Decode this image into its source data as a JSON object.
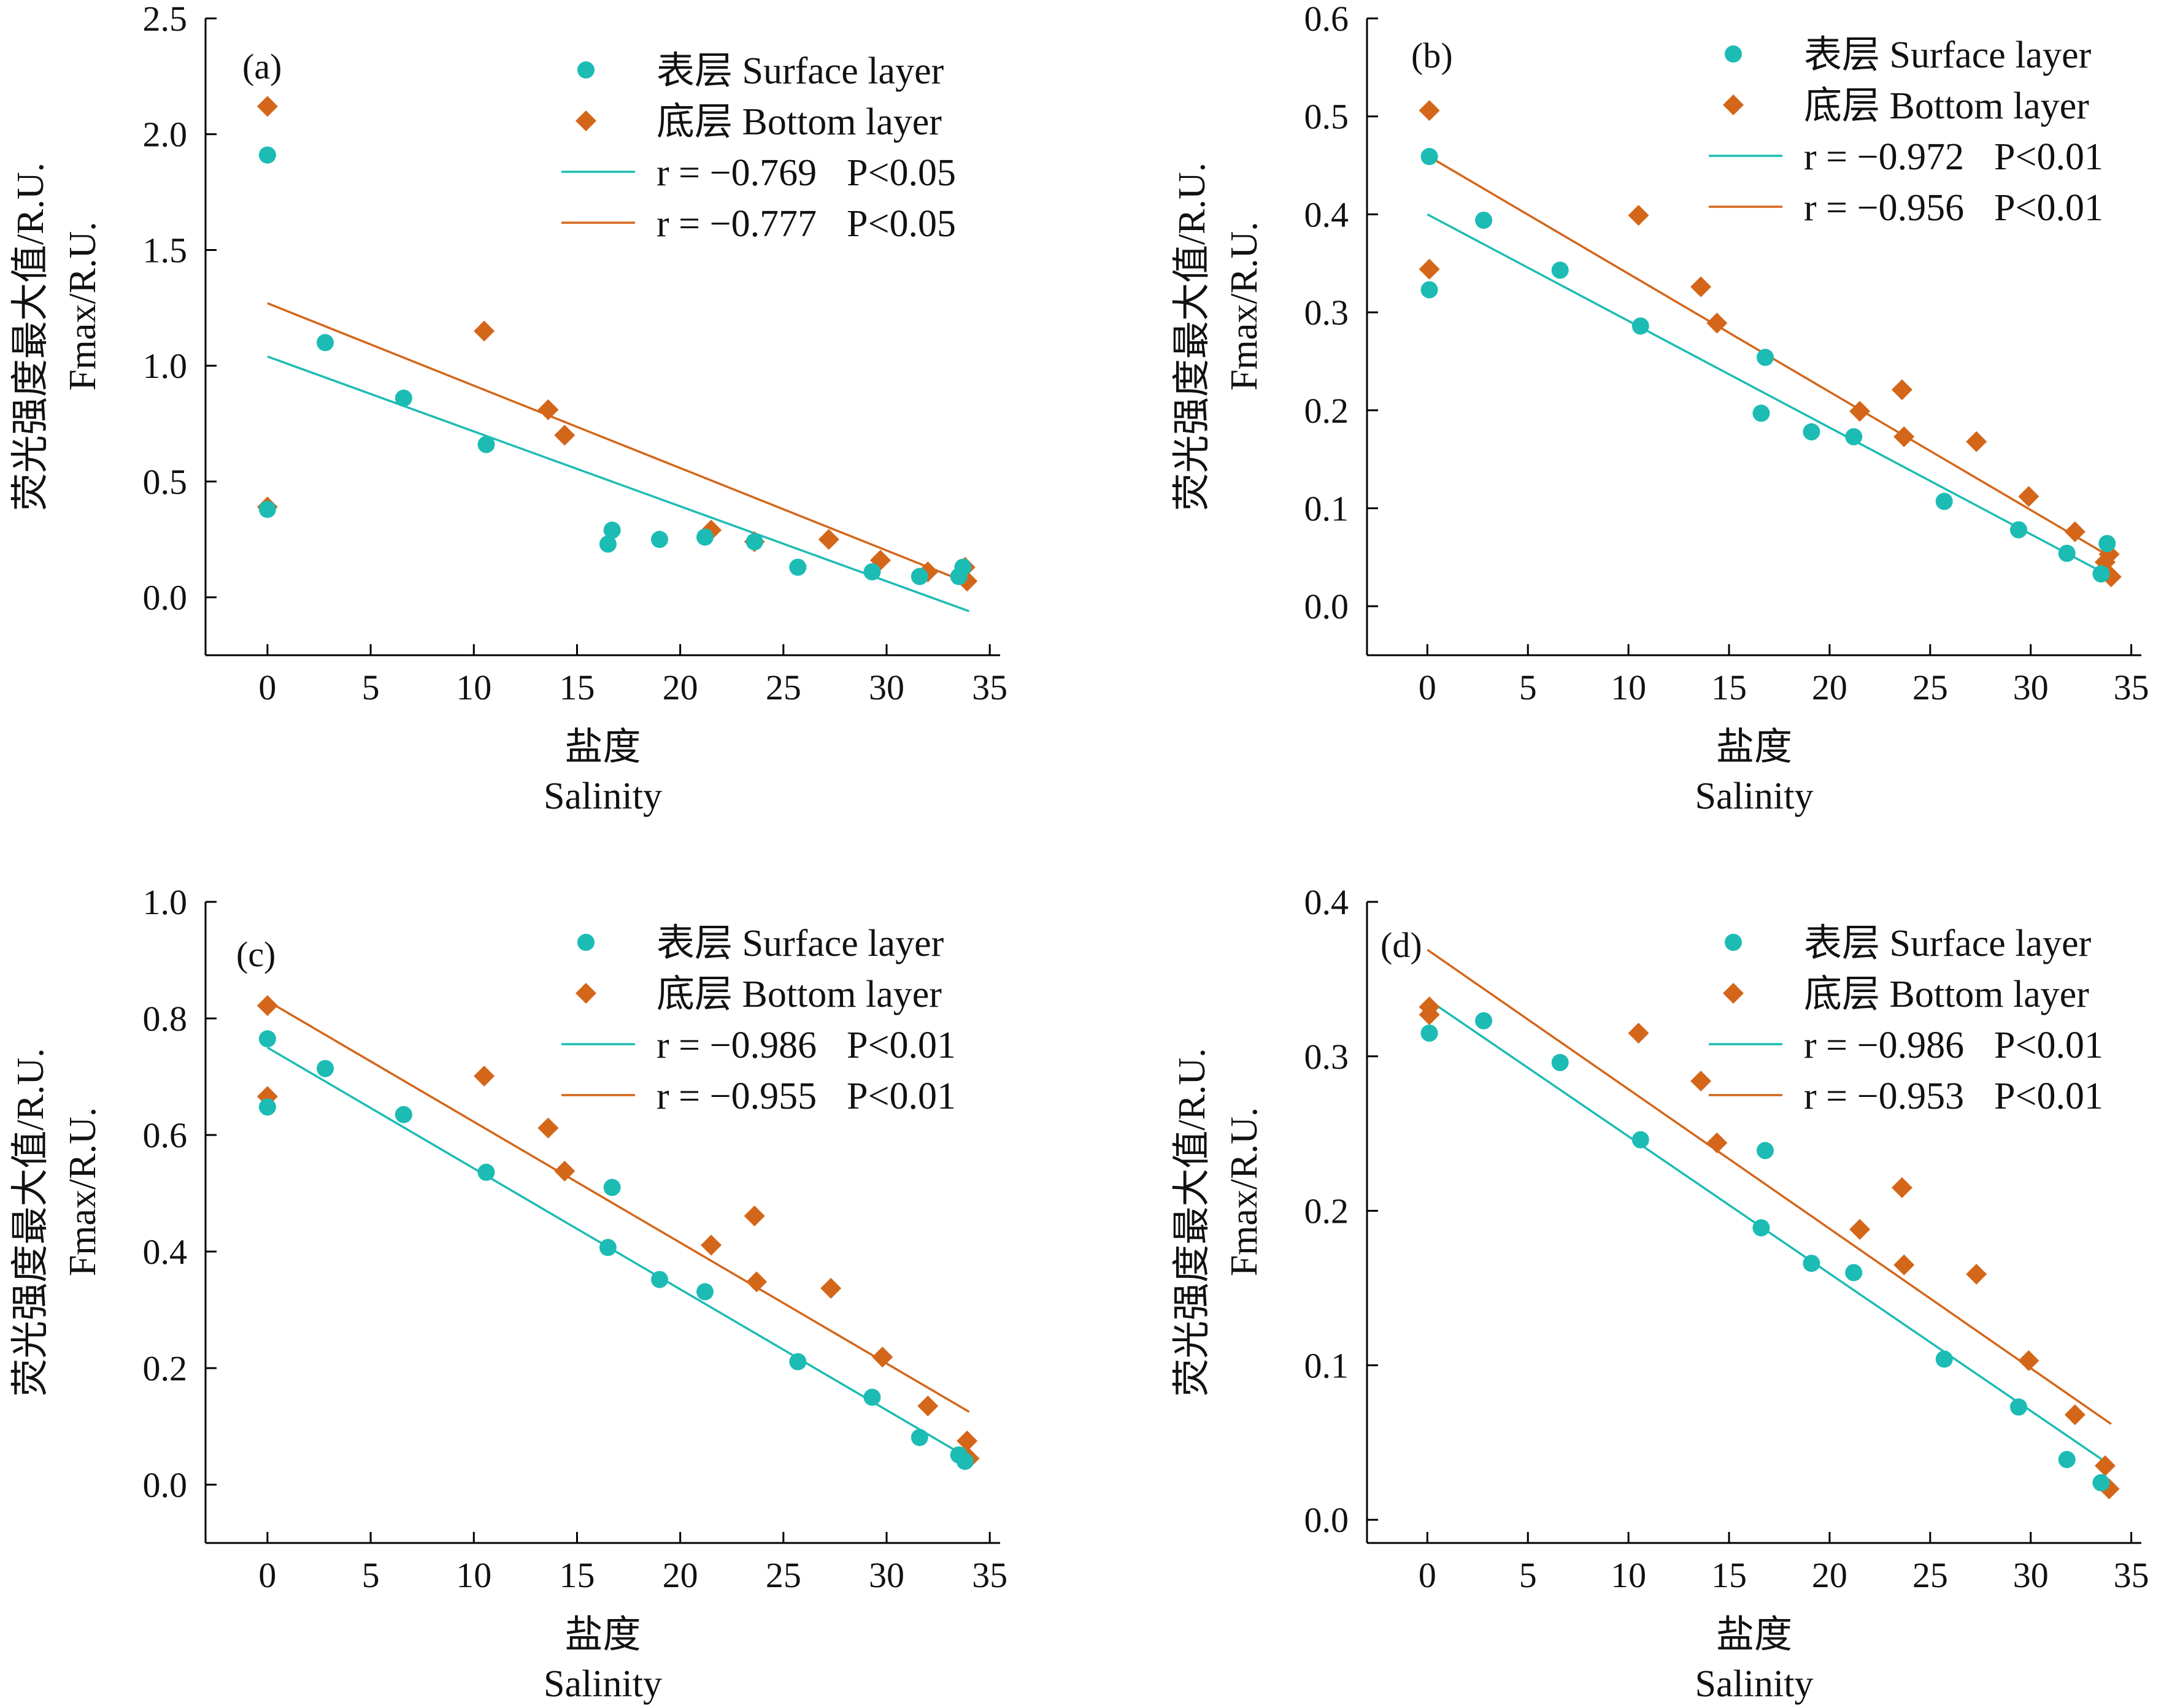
{
  "colors": {
    "surface": "#1cbcb4",
    "bottom": "#d4661a",
    "axis": "#000000"
  },
  "chart_data": [
    {
      "type": "scatter",
      "panel": "(a)",
      "xlabel_cn": "盐度",
      "xlabel_en": "Salinity",
      "ylabel_cn": "荧光强度最大值/R.U.",
      "ylabel_en": "Fmax/R.U.",
      "xlim": [
        -3,
        35.5
      ],
      "ylim": [
        -0.25,
        2.5
      ],
      "xticks": [
        0,
        5,
        10,
        15,
        20,
        25,
        30,
        35
      ],
      "yticks": [
        0.0,
        0.5,
        1.0,
        1.5,
        2.0,
        2.5
      ],
      "ytick_labels": [
        "0.0",
        "0.5",
        "1.0",
        "1.5",
        "2.0",
        "2.5"
      ],
      "series": [
        {
          "name": "表层 Surface layer",
          "marker": "circle",
          "color": "#1cbcb4",
          "x": [
            0,
            0,
            2.8,
            6.6,
            10.6,
            16.5,
            16.7,
            19.0,
            21.2,
            23.6,
            25.7,
            29.3,
            31.6,
            33.5,
            33.7
          ],
          "y": [
            1.91,
            0.38,
            1.1,
            0.86,
            0.66,
            0.23,
            0.29,
            0.25,
            0.26,
            0.24,
            0.13,
            0.11,
            0.09,
            0.09,
            0.13
          ],
          "fit": {
            "x": [
              0,
              34
            ],
            "y": [
              1.04,
              -0.06
            ]
          },
          "stat_r": "r = −0.769",
          "stat_p": "P<0.05"
        },
        {
          "name": "底层 Bottom layer",
          "marker": "diamond",
          "color": "#d4661a",
          "x": [
            0,
            0,
            10.5,
            13.6,
            14.4,
            21.5,
            23.6,
            27.2,
            29.7,
            32.0,
            33.8,
            33.9
          ],
          "y": [
            2.12,
            0.39,
            1.15,
            0.81,
            0.7,
            0.29,
            0.24,
            0.25,
            0.16,
            0.11,
            0.13,
            0.07
          ],
          "fit": {
            "x": [
              0,
              34
            ],
            "y": [
              1.27,
              0.06
            ]
          },
          "stat_r": "r = −0.777",
          "stat_p": "P<0.05"
        }
      ]
    },
    {
      "type": "scatter",
      "panel": "(b)",
      "xlabel_cn": "盐度",
      "xlabel_en": "Salinity",
      "ylabel_cn": "荧光强度最大值/R.U.",
      "ylabel_en": "Fmax/R.U.",
      "xlim": [
        -3,
        35.5
      ],
      "ylim": [
        -0.05,
        0.6
      ],
      "xticks": [
        0,
        5,
        10,
        15,
        20,
        25,
        30,
        35
      ],
      "yticks": [
        0.0,
        0.1,
        0.2,
        0.3,
        0.4,
        0.5,
        0.6
      ],
      "ytick_labels": [
        "0.0",
        "0.1",
        "0.2",
        "0.3",
        "0.4",
        "0.5",
        "0.6"
      ],
      "series": [
        {
          "name": "表层 Surface layer",
          "marker": "circle",
          "color": "#1cbcb4",
          "x": [
            0.1,
            0.1,
            2.8,
            6.6,
            10.6,
            16.6,
            16.8,
            19.1,
            21.2,
            25.7,
            29.4,
            31.8,
            33.5,
            33.8
          ],
          "y": [
            0.459,
            0.323,
            0.394,
            0.343,
            0.286,
            0.197,
            0.254,
            0.178,
            0.173,
            0.107,
            0.078,
            0.054,
            0.033,
            0.064
          ],
          "fit": {
            "x": [
              0,
              34
            ],
            "y": [
              0.4,
              0.03
            ]
          },
          "stat_r": "r = −0.972",
          "stat_p": "P<0.01"
        },
        {
          "name": "底层 Bottom layer",
          "marker": "diamond",
          "color": "#d4661a",
          "x": [
            0.1,
            0.1,
            10.5,
            13.6,
            14.4,
            21.5,
            23.6,
            23.7,
            27.3,
            29.9,
            32.2,
            33.7,
            33.9,
            34.0
          ],
          "y": [
            0.506,
            0.344,
            0.399,
            0.326,
            0.289,
            0.199,
            0.221,
            0.173,
            0.168,
            0.112,
            0.076,
            0.045,
            0.053,
            0.03
          ],
          "fit": {
            "x": [
              0,
              34
            ],
            "y": [
              0.46,
              0.05
            ]
          },
          "stat_r": "r = −0.956",
          "stat_p": "P<0.01"
        }
      ]
    },
    {
      "type": "scatter",
      "panel": "(c)",
      "xlabel_cn": "盐度",
      "xlabel_en": "Salinity",
      "ylabel_cn": "荧光强度最大值/R.U.",
      "ylabel_en": "Fmax/R.U.",
      "xlim": [
        -3,
        35.5
      ],
      "ylim": [
        -0.1,
        1.0
      ],
      "xticks": [
        0,
        5,
        10,
        15,
        20,
        25,
        30,
        35
      ],
      "yticks": [
        0.0,
        0.2,
        0.4,
        0.6,
        0.8,
        1.0
      ],
      "ytick_labels": [
        "0.0",
        "0.2",
        "0.4",
        "0.6",
        "0.8",
        "1.0"
      ],
      "series": [
        {
          "name": "表层 Surface layer",
          "marker": "circle",
          "color": "#1cbcb4",
          "x": [
            0,
            0,
            2.8,
            6.6,
            10.6,
            16.5,
            16.7,
            19.0,
            21.2,
            25.7,
            29.3,
            31.6,
            33.5,
            33.8
          ],
          "y": [
            0.765,
            0.648,
            0.714,
            0.635,
            0.536,
            0.407,
            0.51,
            0.352,
            0.331,
            0.211,
            0.15,
            0.081,
            0.051,
            0.04
          ],
          "fit": {
            "x": [
              0,
              34
            ],
            "y": [
              0.75,
              0.045
            ]
          },
          "stat_r": "r = −0.986",
          "stat_p": "P<0.01"
        },
        {
          "name": "底层 Bottom layer",
          "marker": "diamond",
          "color": "#d4661a",
          "x": [
            0,
            0,
            10.5,
            13.6,
            14.4,
            21.5,
            23.6,
            23.7,
            27.3,
            29.8,
            32.0,
            33.9,
            34.0
          ],
          "y": [
            0.822,
            0.666,
            0.701,
            0.612,
            0.538,
            0.411,
            0.461,
            0.348,
            0.337,
            0.219,
            0.135,
            0.075,
            0.045
          ],
          "fit": {
            "x": [
              0,
              34
            ],
            "y": [
              0.83,
              0.125
            ]
          },
          "stat_r": "r = −0.955",
          "stat_p": "P<0.01"
        }
      ]
    },
    {
      "type": "scatter",
      "panel": "(d)",
      "xlabel_cn": "盐度",
      "xlabel_en": "Salinity",
      "ylabel_cn": "荧光强度最大值/R.U.",
      "ylabel_en": "Fmax/R.U.",
      "xlim": [
        -3,
        35.5
      ],
      "ylim": [
        -0.015,
        0.4
      ],
      "xticks": [
        0,
        5,
        10,
        15,
        20,
        25,
        30,
        35
      ],
      "yticks": [
        0.0,
        0.1,
        0.2,
        0.3,
        0.4
      ],
      "ytick_labels": [
        "0.0",
        "0.1",
        "0.2",
        "0.3",
        "0.4"
      ],
      "series": [
        {
          "name": "表层 Surface layer",
          "marker": "circle",
          "color": "#1cbcb4",
          "x": [
            0.1,
            2.8,
            6.6,
            10.6,
            16.6,
            16.8,
            19.1,
            21.2,
            25.7,
            29.4,
            31.8,
            33.5
          ],
          "y": [
            0.315,
            0.323,
            0.296,
            0.246,
            0.189,
            0.239,
            0.166,
            0.16,
            0.104,
            0.073,
            0.039,
            0.024
          ],
          "fit": {
            "x": [
              0,
              34
            ],
            "y": [
              0.337,
              0.035
            ]
          },
          "stat_r": "r = −0.986",
          "stat_p": "P<0.01"
        },
        {
          "name": "底层 Bottom layer",
          "marker": "diamond",
          "color": "#d4661a",
          "x": [
            0.1,
            0.1,
            10.5,
            13.6,
            14.4,
            21.5,
            23.6,
            23.7,
            27.3,
            29.9,
            32.2,
            33.7,
            33.9
          ],
          "y": [
            0.332,
            0.327,
            0.315,
            0.284,
            0.244,
            0.188,
            0.215,
            0.165,
            0.159,
            0.103,
            0.068,
            0.035,
            0.02
          ],
          "fit": {
            "x": [
              0,
              34
            ],
            "y": [
              0.369,
              0.062
            ]
          },
          "stat_r": "r = −0.953",
          "stat_p": "P<0.01"
        }
      ]
    }
  ]
}
